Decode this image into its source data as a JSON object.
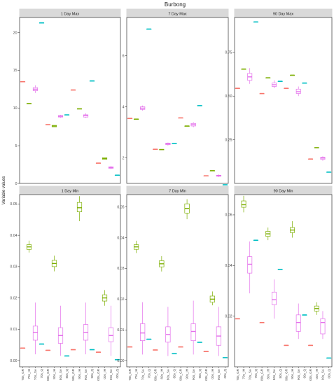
{
  "chart_data": {
    "type": "box",
    "title": "Burbong",
    "ylabel": "Variable values",
    "categories": [
      "70s_GR",
      "70s_IH",
      "70s_SA",
      "70s_Q",
      "80s_GR",
      "80s_IH",
      "80s_SA",
      "80s_Q",
      "90s_GR",
      "90s_IH",
      "90s_SA",
      "90s_Q",
      "00s_GR",
      "00s_IH",
      "00s_SA",
      "00s_Q"
    ],
    "colors": [
      "#F8766D",
      "#7CAE00",
      "#E46FEB",
      "#00BFC4",
      "#F8766D",
      "#7CAE00",
      "#E46FEB",
      "#00BFC4",
      "#F8766D",
      "#7CAE00",
      "#E46FEB",
      "#00BFC4",
      "#F8766D",
      "#7CAE00",
      "#E46FEB",
      "#00BFC4"
    ],
    "panels": [
      {
        "strip": "1 Day Max",
        "ylim": [
          0,
          22
        ],
        "ticks": [
          0,
          5,
          10,
          15,
          20
        ],
        "tick_labels": [
          "0",
          "5",
          "10",
          "15",
          "20"
        ],
        "boxes": [
          [
            13.5,
            13.5,
            13.5,
            13.5,
            13.5
          ],
          [
            10.6,
            10.6,
            10.6,
            10.6,
            10.6
          ],
          [
            12.0,
            12.3,
            12.5,
            12.7,
            13.0
          ],
          [
            21.3,
            21.3,
            21.3,
            21.3,
            21.3
          ],
          [
            7.8,
            7.8,
            7.8,
            7.8,
            7.8
          ],
          [
            7.5,
            7.5,
            7.6,
            7.7,
            7.7
          ],
          [
            8.7,
            8.8,
            8.9,
            9.0,
            9.1
          ],
          [
            9.1,
            9.1,
            9.1,
            9.1,
            9.1
          ],
          [
            12.4,
            12.4,
            12.4,
            12.4,
            12.4
          ],
          [
            9.9,
            9.9,
            9.9,
            9.9,
            9.9
          ],
          [
            8.7,
            8.8,
            9.0,
            9.1,
            9.3
          ],
          [
            13.6,
            13.6,
            13.6,
            13.6,
            13.6
          ],
          [
            2.7,
            2.7,
            2.7,
            2.7,
            2.7
          ],
          [
            3.2,
            3.2,
            3.3,
            3.4,
            3.4
          ],
          [
            1.9,
            2.0,
            2.1,
            2.2,
            2.3
          ],
          [
            1.1,
            1.1,
            1.1,
            1.1,
            1.1
          ]
        ]
      },
      {
        "strip": "7 Day Max",
        "ylim": [
          1.0,
          7.5
        ],
        "ticks": [
          2,
          4,
          6
        ],
        "tick_labels": [
          "2",
          "4",
          "6"
        ],
        "boxes": [
          [
            3.55,
            3.55,
            3.55,
            3.55,
            3.55
          ],
          [
            3.52,
            3.52,
            3.52,
            3.52,
            3.52
          ],
          [
            3.85,
            3.9,
            3.95,
            4.0,
            4.05
          ],
          [
            7.05,
            7.05,
            7.05,
            7.05,
            7.05
          ],
          [
            2.34,
            2.34,
            2.34,
            2.34,
            2.34
          ],
          [
            2.33,
            2.33,
            2.33,
            2.33,
            2.33
          ],
          [
            2.48,
            2.52,
            2.55,
            2.58,
            2.6
          ],
          [
            2.57,
            2.57,
            2.57,
            2.57,
            2.57
          ],
          [
            3.57,
            3.57,
            3.57,
            3.57,
            3.57
          ],
          [
            3.25,
            3.25,
            3.25,
            3.25,
            3.25
          ],
          [
            3.2,
            3.25,
            3.3,
            3.35,
            3.4
          ],
          [
            4.05,
            4.05,
            4.05,
            4.05,
            4.05
          ],
          [
            1.3,
            1.3,
            1.3,
            1.3,
            1.3
          ],
          [
            1.5,
            1.5,
            1.5,
            1.5,
            1.5
          ],
          [
            1.25,
            1.28,
            1.3,
            1.32,
            1.35
          ],
          [
            0.95,
            0.95,
            0.95,
            0.95,
            0.95
          ]
        ]
      },
      {
        "strip": "90 Day Max",
        "ylim": [
          0.0,
          0.95
        ],
        "ticks": [
          0.25,
          0.5,
          0.75
        ],
        "tick_labels": [
          "0.25",
          "0.50",
          "0.75"
        ],
        "boxes": [
          [
            0.545,
            0.545,
            0.545,
            0.545,
            0.545
          ],
          [
            0.655,
            0.655,
            0.655,
            0.655,
            0.655
          ],
          [
            0.57,
            0.59,
            0.61,
            0.63,
            0.66
          ],
          [
            0.925,
            0.925,
            0.925,
            0.925,
            0.925
          ],
          [
            0.515,
            0.515,
            0.515,
            0.515,
            0.515
          ],
          [
            0.605,
            0.605,
            0.605,
            0.605,
            0.605
          ],
          [
            0.545,
            0.555,
            0.565,
            0.575,
            0.59
          ],
          [
            0.585,
            0.585,
            0.585,
            0.585,
            0.585
          ],
          [
            0.545,
            0.545,
            0.545,
            0.545,
            0.545
          ],
          [
            0.62,
            0.62,
            0.62,
            0.62,
            0.62
          ],
          [
            0.5,
            0.515,
            0.525,
            0.54,
            0.555
          ],
          [
            0.575,
            0.575,
            0.575,
            0.575,
            0.575
          ],
          [
            0.14,
            0.14,
            0.14,
            0.14,
            0.14
          ],
          [
            0.205,
            0.205,
            0.205,
            0.205,
            0.205
          ],
          [
            0.13,
            0.138,
            0.145,
            0.15,
            0.155
          ],
          [
            0.065,
            0.065,
            0.065,
            0.065,
            0.065
          ]
        ]
      },
      {
        "strip": "1 Day Min",
        "ylim": [
          -0.002,
          0.053
        ],
        "ticks": [
          0.0,
          0.01,
          0.02,
          0.03,
          0.04,
          0.05
        ],
        "tick_labels": [
          "0.00",
          "0.01",
          "0.02",
          "0.03",
          "0.04",
          "0.05"
        ],
        "boxes": [
          [
            0.004,
            0.004,
            0.004,
            0.004,
            0.004
          ],
          [
            0.0345,
            0.0355,
            0.0363,
            0.037,
            0.0383
          ],
          [
            0.002,
            0.0065,
            0.009,
            0.011,
            0.0185
          ],
          [
            0.0053,
            0.0053,
            0.0053,
            0.0053,
            0.0053
          ],
          [
            0.0033,
            0.0033,
            0.0033,
            0.0033,
            0.0033
          ],
          [
            0.0285,
            0.03,
            0.031,
            0.032,
            0.0335
          ],
          [
            0.0015,
            0.0055,
            0.008,
            0.0105,
            0.0175
          ],
          [
            0.0015,
            0.0015,
            0.0015,
            0.0015,
            0.0015
          ],
          [
            0.0035,
            0.0035,
            0.0035,
            0.0035,
            0.0035
          ],
          [
            0.0445,
            0.0475,
            0.0488,
            0.0505,
            0.0525
          ],
          [
            0.002,
            0.0065,
            0.009,
            0.0115,
            0.0185
          ],
          [
            0.0035,
            0.0035,
            0.0035,
            0.0035,
            0.0035
          ],
          [
            0.0027,
            0.0027,
            0.0027,
            0.0027,
            0.0027
          ],
          [
            0.0175,
            0.019,
            0.02,
            0.021,
            0.0225
          ],
          [
            0.0015,
            0.006,
            0.008,
            0.0105,
            0.0175
          ],
          [
            0.0003,
            0.0003,
            0.0003,
            0.0003,
            0.0003
          ]
        ]
      },
      {
        "strip": "7 Day Min",
        "ylim": [
          -0.002,
          0.054
        ],
        "ticks": [
          0.0,
          0.01,
          0.02,
          0.03,
          0.04,
          0.05
        ],
        "tick_labels": [
          "0.00",
          "0.01",
          "0.02",
          "0.03",
          "0.04",
          "0.05"
        ],
        "boxes": [
          [
            0.0045,
            0.0045,
            0.0045,
            0.0045,
            0.0045
          ],
          [
            0.035,
            0.0362,
            0.037,
            0.0377,
            0.039
          ],
          [
            0.002,
            0.0065,
            0.009,
            0.012,
            0.019
          ],
          [
            0.007,
            0.007,
            0.007,
            0.007,
            0.007
          ],
          [
            0.0035,
            0.0035,
            0.0035,
            0.0035,
            0.0035
          ],
          [
            0.029,
            0.0305,
            0.0315,
            0.0325,
            0.034
          ],
          [
            0.0015,
            0.006,
            0.0085,
            0.011,
            0.0175
          ],
          [
            0.0023,
            0.0023,
            0.0023,
            0.0023,
            0.0023
          ],
          [
            0.0045,
            0.0045,
            0.0045,
            0.0045,
            0.0045
          ],
          [
            0.046,
            0.048,
            0.0495,
            0.051,
            0.0525
          ],
          [
            0.002,
            0.0065,
            0.0095,
            0.012,
            0.0195
          ],
          [
            0.006,
            0.006,
            0.006,
            0.006,
            0.006
          ],
          [
            0.003,
            0.003,
            0.003,
            0.003,
            0.003
          ],
          [
            0.018,
            0.019,
            0.02,
            0.021,
            0.0225
          ],
          [
            0.0015,
            0.005,
            0.008,
            0.011,
            0.0175
          ],
          [
            0.001,
            0.001,
            0.001,
            0.001,
            0.001
          ]
        ]
      },
      {
        "strip": "90 Day Min",
        "ylim": [
          0.0,
          0.068
        ],
        "ticks": [
          0.02,
          0.04,
          0.06
        ],
        "tick_labels": [
          "0.02",
          "0.04",
          "0.06"
        ],
        "boxes": [
          [
            0.019,
            0.019,
            0.019,
            0.019,
            0.019
          ],
          [
            0.061,
            0.063,
            0.064,
            0.0655,
            0.0675
          ],
          [
            0.029,
            0.037,
            0.0405,
            0.0435,
            0.0495
          ],
          [
            0.05,
            0.05,
            0.05,
            0.05,
            0.05
          ],
          [
            0.0175,
            0.0175,
            0.0175,
            0.0175,
            0.0175
          ],
          [
            0.05,
            0.0515,
            0.0525,
            0.0535,
            0.055
          ],
          [
            0.019,
            0.0245,
            0.0265,
            0.0295,
            0.0345
          ],
          [
            0.0385,
            0.0385,
            0.0385,
            0.0385,
            0.0385
          ],
          [
            0.0085,
            0.0085,
            0.0085,
            0.0085,
            0.0085
          ],
          [
            0.051,
            0.053,
            0.054,
            0.055,
            0.0575
          ],
          [
            0.011,
            0.014,
            0.0175,
            0.0205,
            0.025
          ],
          [
            0.0205,
            0.0205,
            0.0205,
            0.0205,
            0.0205
          ],
          [
            0.0085,
            0.0085,
            0.0085,
            0.0085,
            0.0085
          ],
          [
            0.0205,
            0.022,
            0.023,
            0.024,
            0.0255
          ],
          [
            0.011,
            0.013,
            0.0175,
            0.019,
            0.022
          ],
          [
            0.0035,
            0.0035,
            0.0035,
            0.0035,
            0.0035
          ]
        ]
      }
    ]
  }
}
